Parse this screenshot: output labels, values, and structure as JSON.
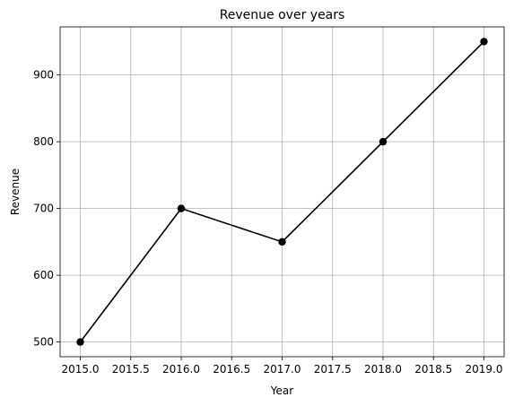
{
  "chart_data": {
    "type": "line",
    "title": "Revenue over years",
    "xlabel": "Year",
    "ylabel": "Revenue",
    "x": [
      2015,
      2016,
      2017,
      2018,
      2019
    ],
    "series": [
      {
        "values": [
          500,
          700,
          650,
          800,
          950
        ],
        "color": "#000000",
        "marker": "circle"
      }
    ],
    "xlim": [
      2014.8,
      2019.2
    ],
    "ylim": [
      478,
      972
    ],
    "xticks": [
      2015.0,
      2015.5,
      2016.0,
      2016.5,
      2017.0,
      2017.5,
      2018.0,
      2018.5,
      2019.0
    ],
    "xtick_labels": [
      "2015.0",
      "2015.5",
      "2016.0",
      "2016.5",
      "2017.0",
      "2017.5",
      "2018.0",
      "2018.5",
      "2019.0"
    ],
    "yticks": [
      500,
      600,
      700,
      800,
      900
    ],
    "ytick_labels": [
      "500",
      "600",
      "700",
      "800",
      "900"
    ],
    "grid": true,
    "legend": false
  }
}
